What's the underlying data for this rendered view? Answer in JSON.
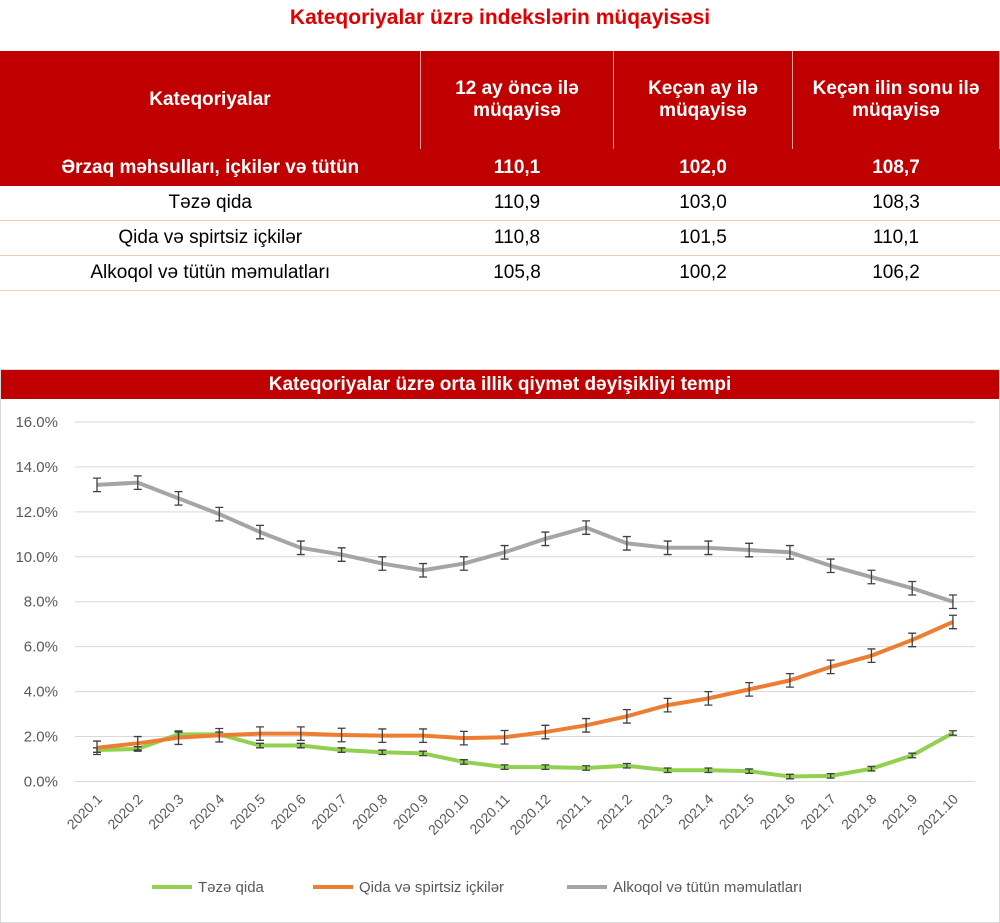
{
  "title": "Kateqoriyalar üzrə indekslərin müqayisəsi",
  "table": {
    "headers": [
      "Kateqoriyalar",
      "12 ay öncə ilə müqayisə",
      "Keçən ay ilə müqayisə",
      "Keçən ilin sonu ilə müqayisə"
    ],
    "rows": [
      [
        "Ərzaq məhsulları, içkilər və tütün",
        "110,1",
        "102,0",
        "108,7"
      ],
      [
        "Təzə qida",
        "110,9",
        "103,0",
        "108,3"
      ],
      [
        "Qida və spirtsiz içkilər",
        "110,8",
        "101,5",
        "110,1"
      ],
      [
        "Alkoqol və tütün məmulatları",
        "105,8",
        "100,2",
        "106,2"
      ]
    ]
  },
  "chart_data": {
    "type": "line",
    "title": "Kateqoriyalar üzrə orta illik qiymət dəyişikliyi tempi",
    "x": [
      "2020.1",
      "2020.2",
      "2020.3",
      "2020.4",
      "2020.5",
      "2020.6",
      "2020.7",
      "2020.8",
      "2020.9",
      "2020.10",
      "2020.11",
      "2020.12",
      "2021.1",
      "2021.2",
      "2021.3",
      "2021.4",
      "2021.5",
      "2021.6",
      "2021.7",
      "2021.8",
      "2021.9",
      "2021.10"
    ],
    "yticks": [
      "0.0%",
      "2.0%",
      "4.0%",
      "6.0%",
      "8.0%",
      "10.0%",
      "12.0%",
      "14.0%",
      "16.0%"
    ],
    "ylim": [
      0,
      16
    ],
    "grid": true,
    "legend": "bottom",
    "error_bars": true,
    "series": [
      {
        "name": "Təzə qida",
        "color": "#92d050",
        "values": [
          1.4,
          1.45,
          2.1,
          2.1,
          1.6,
          1.6,
          1.4,
          1.3,
          1.25,
          0.87,
          0.64,
          0.64,
          0.6,
          0.7,
          0.5,
          0.5,
          0.46,
          0.22,
          0.25,
          0.57,
          1.16,
          2.16
        ]
      },
      {
        "name": "Qida və spirtsiz içkilər",
        "color": "#ed7d31",
        "values": [
          1.5,
          1.7,
          1.95,
          2.06,
          2.13,
          2.13,
          2.07,
          2.04,
          2.04,
          1.93,
          1.97,
          2.2,
          2.5,
          2.9,
          3.4,
          3.7,
          4.1,
          4.5,
          5.1,
          5.6,
          6.3,
          7.1
        ]
      },
      {
        "name": "Alkoqol və tütün məmulatları",
        "color": "#a5a5a5",
        "values": [
          13.2,
          13.3,
          12.6,
          11.9,
          11.1,
          10.4,
          10.1,
          9.7,
          9.4,
          9.7,
          10.2,
          10.8,
          11.3,
          10.6,
          10.4,
          10.4,
          10.3,
          10.2,
          9.6,
          9.1,
          8.6,
          8.0
        ]
      }
    ]
  }
}
